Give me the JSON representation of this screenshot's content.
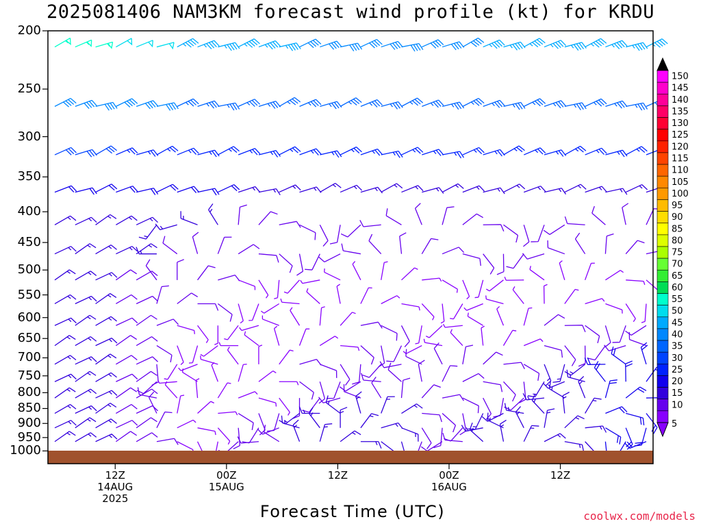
{
  "title": "2025081406 NAM3KM forecast wind profile (kt) for KRDU",
  "xlabel": "Forecast Time (UTC)",
  "credit": "coolwx.com/models",
  "y_ticks": [
    "200",
    "250",
    "300",
    "350",
    "400",
    "450",
    "500",
    "550",
    "600",
    "650",
    "700",
    "750",
    "800",
    "850",
    "900",
    "950",
    "1000"
  ],
  "x_ticks": [
    {
      "lines": [
        "12Z",
        "14AUG",
        "2025"
      ]
    },
    {
      "lines": [
        "00Z",
        "15AUG"
      ]
    },
    {
      "lines": [
        "12Z"
      ]
    },
    {
      "lines": [
        "00Z",
        "16AUG"
      ]
    },
    {
      "lines": [
        "12Z"
      ]
    }
  ],
  "colorbar": {
    "labels": [
      "150",
      "145",
      "140",
      "135",
      "130",
      "125",
      "120",
      "115",
      "110",
      "105",
      "100",
      "95",
      "90",
      "85",
      "80",
      "75",
      "70",
      "65",
      "60",
      "55",
      "50",
      "45",
      "40",
      "35",
      "30",
      "25",
      "20",
      "15",
      "10",
      "5"
    ],
    "colors": [
      "#ff00ff",
      "#ff00cc",
      "#ff0099",
      "#ff0066",
      "#ff0033",
      "#ff0000",
      "#ff2200",
      "#ff4400",
      "#ff6600",
      "#ff8800",
      "#ff9900",
      "#ffbb00",
      "#ffdd00",
      "#ffff00",
      "#ddff00",
      "#aaff00",
      "#66ff33",
      "#33ee33",
      "#00dd55",
      "#00ffcc",
      "#00ddee",
      "#00aaff",
      "#0088ff",
      "#0066ff",
      "#0044ff",
      "#0022ff",
      "#1100ee",
      "#3300dd",
      "#6600ee",
      "#8800ff"
    ]
  },
  "chart_data": {
    "type": "wind_barb_time_height",
    "title": "2025081406 NAM3KM forecast wind profile (kt) for KRDU",
    "xlabel": "Forecast Time (UTC)",
    "ylabel": "",
    "units": "kt",
    "x_start": "2025-08-14 06Z",
    "x_end": "2025-08-16 21Z",
    "x_step_hours": 1,
    "y_scale": "log",
    "ylim": [
      1000,
      200
    ],
    "levels_hPa": [
      215,
      270,
      325,
      375,
      425,
      475,
      525,
      575,
      625,
      675,
      725,
      775,
      825,
      875,
      925,
      975
    ],
    "speed_kt_by_level": {
      "215": [
        55,
        50,
        45,
        45,
        40,
        40,
        40,
        45,
        45,
        45
      ],
      "270": [
        40,
        40,
        35,
        35,
        35,
        35,
        35,
        35,
        35,
        35
      ],
      "325": [
        30,
        25,
        25,
        25,
        25,
        25,
        25,
        25,
        25,
        25
      ],
      "375": [
        20,
        20,
        20,
        15,
        15,
        15,
        15,
        15,
        15,
        15
      ],
      "425": [
        15,
        15,
        15,
        10,
        10,
        10,
        10,
        10,
        10,
        10
      ],
      "475": [
        15,
        15,
        10,
        10,
        10,
        10,
        10,
        10,
        10,
        10
      ],
      "525": [
        15,
        10,
        10,
        5,
        5,
        5,
        5,
        5,
        5,
        5
      ],
      "625": [
        15,
        10,
        5,
        5,
        5,
        10,
        5,
        5,
        10,
        10
      ],
      "775": [
        15,
        10,
        5,
        5,
        10,
        10,
        10,
        10,
        15,
        20
      ],
      "875": [
        15,
        10,
        5,
        10,
        15,
        15,
        10,
        15,
        15,
        20
      ]
    },
    "colorbar_range_kt": [
      5,
      150
    ],
    "colorbar_step_kt": 5
  }
}
